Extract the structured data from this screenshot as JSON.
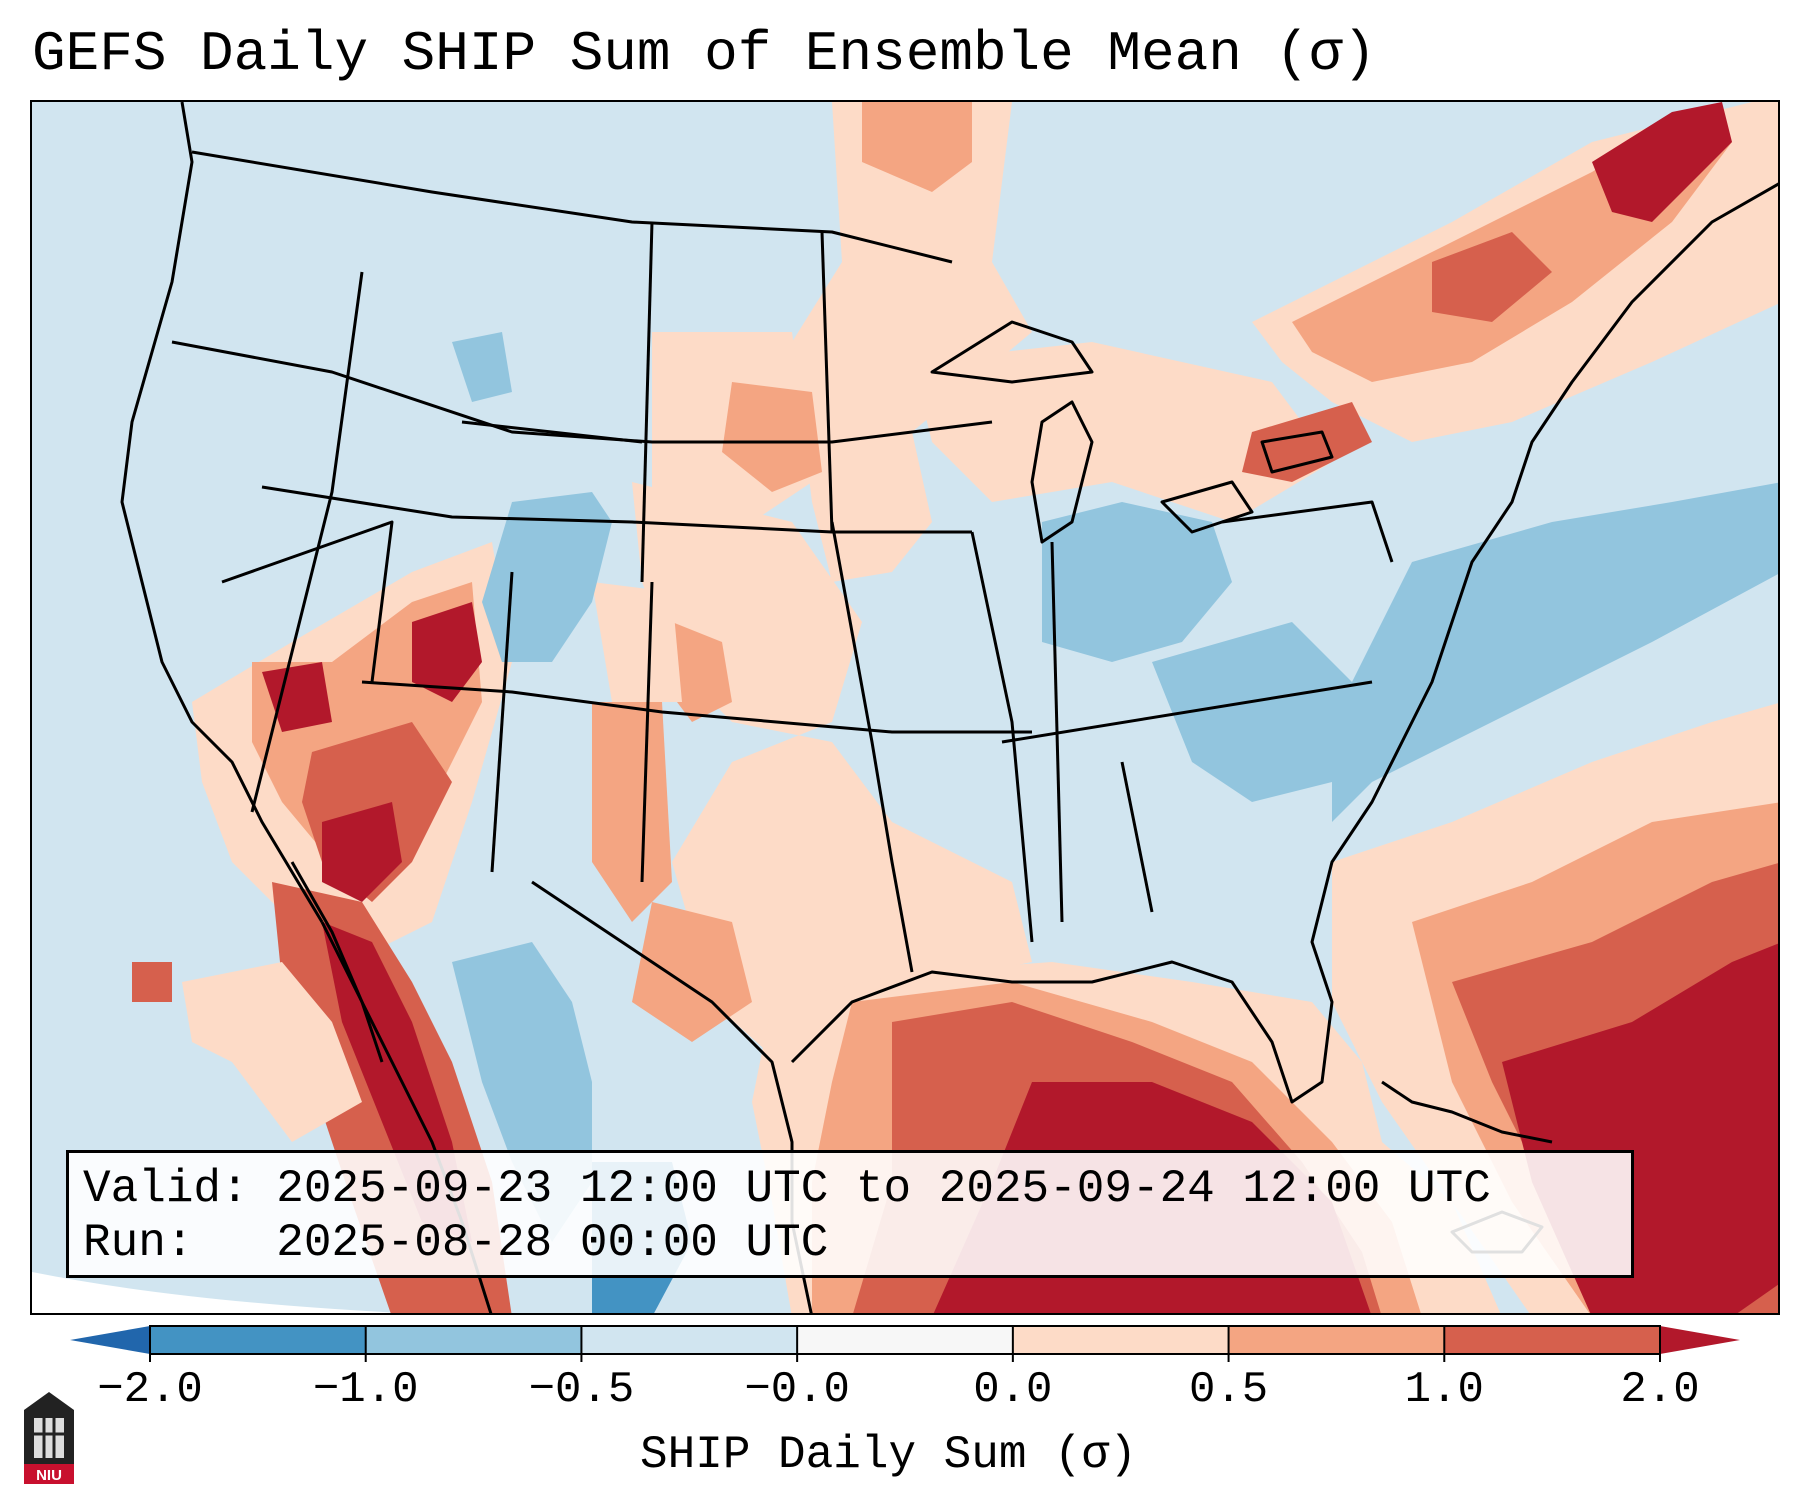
{
  "title": "GEFS Daily SHIP Sum of Ensemble Mean (σ)",
  "info": {
    "valid_line": "Valid: 2025-09-23 12:00 UTC to 2025-09-24 12:00 UTC",
    "run_line": "Run:   2025-08-28 00:00 UTC"
  },
  "colorbar": {
    "label": "SHIP Daily Sum (σ)",
    "ticks": [
      "−2.0",
      "−1.0",
      "−0.5",
      "−0.0",
      "0.0",
      "0.5",
      "1.0",
      "2.0"
    ],
    "colors": [
      "#4393c3",
      "#92c5de",
      "#d1e5f0",
      "#f7f7f7",
      "#fddbc7",
      "#f4a582",
      "#d6604d"
    ],
    "extend_low_color": "#2166ac",
    "extend_high_color": "#b2182b"
  },
  "map": {
    "region": "Continental United States",
    "colors": {
      "background_blue": "#d1e5f0",
      "light_red": "#fddbc7",
      "mid_red": "#f4a582",
      "red": "#d6604d",
      "dark_red": "#b2182b",
      "mid_blue": "#92c5de",
      "dark_blue": "#4393c3"
    }
  },
  "logo": {
    "text": "NIU"
  }
}
